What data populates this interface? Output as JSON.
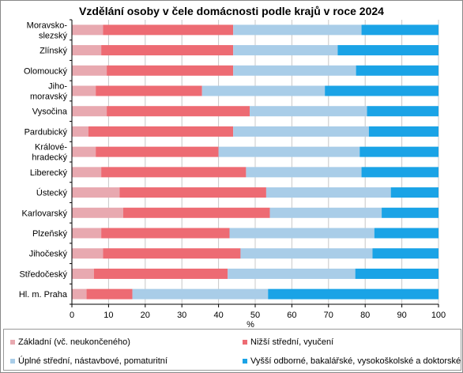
{
  "chart_data": {
    "type": "bar",
    "orientation": "horizontal",
    "stacked": true,
    "title": "Vzdělání osoby v čele domácnosti podle krajů v roce 2024",
    "xlabel": "%",
    "xlim": [
      0,
      100
    ],
    "xticks": [
      "0",
      "10",
      "20",
      "30",
      "40",
      "50",
      "60",
      "70",
      "80",
      "90",
      "100"
    ],
    "grid": true,
    "legend_position": "bottom",
    "categories": [
      [
        "Moravsko-",
        "slezský"
      ],
      [
        "Zlínský"
      ],
      [
        "Olomoucký"
      ],
      [
        "Jiho-",
        "moravský"
      ],
      [
        "Vysočina"
      ],
      [
        "Pardubický"
      ],
      [
        "Králové-",
        "hradecký"
      ],
      [
        "Liberecký"
      ],
      [
        "Ústecký"
      ],
      [
        "Karlovarský"
      ],
      [
        "Plzeňský"
      ],
      [
        "Jihočeský"
      ],
      [
        "Středočeský"
      ],
      [
        "Hl. m. Praha"
      ]
    ],
    "series": [
      {
        "name": "Základní (vč. neukončeného)",
        "color": "#e8a9b0",
        "values": [
          8.5,
          8.0,
          9.5,
          6.5,
          9.5,
          4.5,
          6.5,
          8.0,
          13.0,
          14.0,
          8.0,
          8.5,
          6.0,
          4.0
        ]
      },
      {
        "name": "Nižší střední, vyučení",
        "color": "#ed6b73",
        "values": [
          35.5,
          36.0,
          34.5,
          29.0,
          39.0,
          39.5,
          33.5,
          39.5,
          40.0,
          40.0,
          35.0,
          37.5,
          36.5,
          12.5
        ]
      },
      {
        "name": "Úplné střední, nástavbové, pomaturitní",
        "color": "#a9cde8",
        "values": [
          35.0,
          28.5,
          33.5,
          33.5,
          32.0,
          37.0,
          38.5,
          31.5,
          34.0,
          30.5,
          39.5,
          36.0,
          34.8,
          37.0
        ]
      },
      {
        "name": "Vyšší odborné, bakalářské, vysokoškolské a doktorské",
        "color": "#1aa3e6",
        "values": [
          21.0,
          27.5,
          22.5,
          31.0,
          19.5,
          19.0,
          21.5,
          21.0,
          13.0,
          15.5,
          17.5,
          18.0,
          22.7,
          46.5
        ]
      }
    ]
  }
}
